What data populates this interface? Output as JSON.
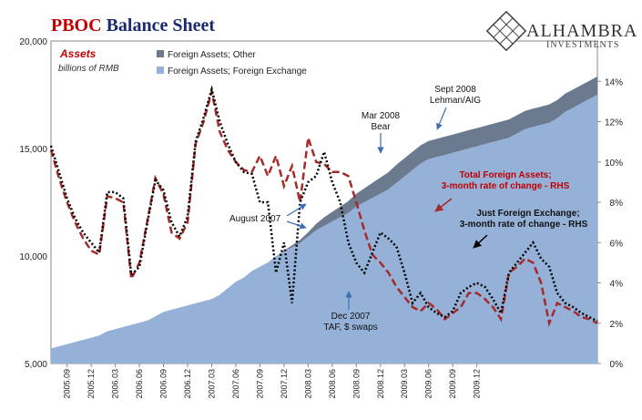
{
  "title": {
    "part1": "PBOC",
    "part2": " Balance Sheet"
  },
  "logo": {
    "name": "ALHAMBRA",
    "sub": "INVESTMENTS"
  },
  "assets_label": "Assets",
  "units_label": "billions of RMB",
  "colors": {
    "title_red": "#c00000",
    "other_area": "#6b7a8f",
    "fx_area": "#95b1d8",
    "total_line": "#a52a2a",
    "fx_line": "#000000",
    "annotation_red": "#c00000"
  },
  "chart_data": {
    "type": "area",
    "x_start": "2005-07",
    "x_end": "2009-12",
    "x_tick_labels": [
      "2005.09",
      "2005.12",
      "2006.03",
      "2006.06",
      "2006.09",
      "2006.12",
      "2007.03",
      "2007.06",
      "2007.09",
      "2007.12",
      "2008.03",
      "2008.06",
      "2008.09",
      "2008.12",
      "2009.03",
      "2009.06",
      "2009.09",
      "2009.12"
    ],
    "y_left": {
      "min": 5000,
      "max": 20000,
      "ticks": [
        "5,000",
        "10,000",
        "15,000",
        "20,000"
      ],
      "tick_values": [
        5000,
        10000,
        15000,
        20000
      ]
    },
    "y_right": {
      "min": 0,
      "max": 16,
      "ticks": [
        "0%",
        "2%",
        "4%",
        "6%",
        "8%",
        "10%",
        "12%",
        "14%"
      ],
      "tick_values": [
        0,
        2,
        4,
        6,
        8,
        10,
        12,
        14
      ]
    },
    "legend": [
      {
        "label": "Foreign Assets; Other",
        "color": "#6b7a8f"
      },
      {
        "label": "Foreign Assets; Foreign Exchange",
        "color": "#95b1d8"
      }
    ],
    "series": [
      {
        "name": "Foreign Assets; Foreign Exchange",
        "axis": "left",
        "kind": "area",
        "values": [
          5700,
          5800,
          5900,
          6000,
          6100,
          6200,
          6300,
          6500,
          6600,
          6700,
          6800,
          6900,
          7000,
          7200,
          7400,
          7500,
          7600,
          7700,
          7800,
          7900,
          8000,
          8200,
          8500,
          8800,
          9000,
          9300,
          9500,
          9700,
          10000,
          10200,
          10400,
          10600,
          10900,
          11200,
          11400,
          11600,
          11800,
          12000,
          12300,
          12500,
          12700,
          12900,
          13100,
          13400,
          13700,
          14000,
          14300,
          14500,
          14600,
          14700,
          14800,
          14900,
          15000,
          15100,
          15200,
          15300,
          15400,
          15500,
          15700,
          15900,
          16000,
          16100,
          16200,
          16400,
          16700,
          16900,
          17100,
          17300,
          17500
        ]
      },
      {
        "name": "Foreign Assets; Other",
        "axis": "left",
        "kind": "stacked-area",
        "values": [
          0,
          0,
          0,
          0,
          0,
          0,
          0,
          0,
          0,
          0,
          0,
          0,
          0,
          0,
          0,
          0,
          0,
          0,
          0,
          0,
          0,
          0,
          0,
          0,
          0,
          0,
          0,
          0,
          0,
          50,
          100,
          150,
          200,
          300,
          400,
          450,
          500,
          550,
          600,
          650,
          700,
          750,
          800,
          850,
          850,
          850,
          850,
          850,
          850,
          850,
          850,
          850,
          850,
          850,
          850,
          850,
          850,
          850,
          850,
          850,
          850,
          850,
          850,
          850,
          850,
          850,
          850,
          850,
          850
        ]
      },
      {
        "name": "Total Foreign Assets; 3-month rate of change - RHS",
        "axis": "right",
        "kind": "line",
        "values": [
          10.6,
          9.2,
          8.0,
          7.0,
          6.2,
          5.6,
          5.4,
          8.3,
          8.2,
          8.0,
          4.2,
          5.0,
          7.1,
          9.2,
          8.4,
          6.5,
          6.2,
          7.0,
          10.9,
          12.0,
          13.5,
          11.5,
          10.6,
          10.0,
          9.6,
          9.5,
          10.3,
          9.3,
          10.3,
          8.8,
          9.8,
          8.0,
          11.2,
          10.0,
          9.9,
          9.5,
          9.5,
          9.3,
          8.0,
          6.6,
          5.4,
          5.0,
          4.5,
          3.8,
          3.3,
          2.8,
          2.6,
          3.0,
          2.7,
          2.2,
          2.5,
          2.8,
          3.5,
          3.5,
          3.2,
          2.8,
          2.2,
          4.5,
          4.8,
          5.2,
          5.0,
          4.0,
          2.0,
          3.0,
          2.8,
          2.6,
          2.3,
          2.2,
          2.0
        ]
      },
      {
        "name": "Just Foreign Exchange; 3-month rate of change - RHS",
        "axis": "right",
        "kind": "line",
        "values": [
          10.8,
          9.5,
          8.2,
          7.2,
          6.5,
          6.0,
          5.5,
          8.5,
          8.5,
          8.2,
          4.4,
          4.8,
          7.0,
          9.1,
          8.6,
          7.0,
          6.3,
          7.3,
          11.0,
          12.2,
          13.6,
          12.0,
          10.9,
          10.0,
          9.5,
          9.4,
          8.0,
          8.0,
          4.5,
          6.0,
          3.0,
          8.0,
          9.0,
          9.3,
          10.5,
          9.0,
          8.0,
          6.0,
          5.0,
          4.5,
          5.5,
          6.5,
          6.2,
          5.8,
          4.5,
          3.0,
          3.5,
          2.8,
          2.5,
          2.3,
          2.6,
          3.5,
          3.8,
          4.0,
          3.8,
          3.2,
          2.5,
          4.5,
          5.0,
          5.5,
          6.0,
          5.2,
          4.8,
          3.5,
          3.0,
          2.8,
          2.5,
          2.3,
          2.1
        ]
      }
    ]
  },
  "annotations": {
    "sept2008": [
      "Sept 2008",
      "Lehman/AIG"
    ],
    "mar2008": [
      "Mar 2008",
      "Bear"
    ],
    "aug2007": "August 2007",
    "dec2007": [
      "Dec 2007",
      "TAF, $ swaps"
    ],
    "total_label": [
      "Total Foreign Assets;",
      "3-month rate of change - RHS"
    ],
    "fx_label": [
      "Just Foreign Exchange;",
      "3-month rate of change - RHS"
    ]
  }
}
